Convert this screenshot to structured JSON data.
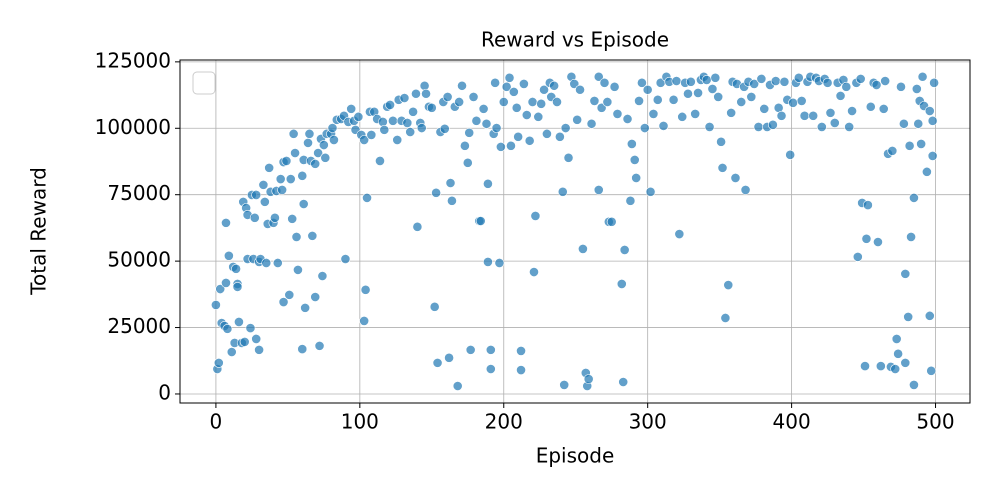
{
  "chart_data": {
    "type": "scatter",
    "title": "Reward vs Episode",
    "x_label": "Episode",
    "y_label": "Total Reward",
    "color": "#1f77b4",
    "grid": true,
    "legend": "upper left",
    "xlim": [
      -24.95,
      523.95
    ],
    "xticks": [
      0,
      100,
      200,
      300,
      400,
      500
    ],
    "ylim": [
      -3400,
      125700
    ],
    "yticks": [
      0,
      25000,
      50000,
      75000,
      100000,
      125000
    ],
    "x": [
      0,
      1,
      2,
      3,
      4,
      6,
      7,
      7,
      8,
      9,
      11,
      12,
      13,
      14,
      15,
      15,
      16,
      18,
      19,
      20,
      21,
      22,
      22,
      24,
      25,
      26,
      27,
      28,
      28,
      30,
      30,
      31,
      33,
      34,
      35,
      36,
      37,
      38,
      40,
      41,
      42,
      43,
      45,
      46,
      47,
      47,
      49,
      51,
      52,
      53,
      54,
      55,
      56,
      57,
      60,
      60,
      61,
      61,
      62,
      64,
      65,
      66,
      67,
      69,
      69,
      71,
      72,
      73,
      74,
      75,
      76,
      77,
      80,
      81,
      82,
      84,
      87,
      89,
      90,
      92,
      94,
      96,
      97,
      99,
      101,
      103,
      103,
      104,
      105,
      107,
      108,
      110,
      112,
      114,
      116,
      117,
      119,
      121,
      123,
      126,
      127,
      129,
      131,
      133,
      135,
      137,
      139,
      140,
      142,
      143,
      145,
      146,
      148,
      150,
      152,
      153,
      154,
      156,
      158,
      159,
      161,
      162,
      163,
      164,
      166,
      168,
      169,
      171,
      173,
      175,
      176,
      177,
      179,
      181,
      183,
      184,
      186,
      188,
      189,
      189,
      191,
      191,
      193,
      194,
      195,
      197,
      198,
      200,
      202,
      204,
      205,
      207,
      209,
      210,
      212,
      212,
      214,
      216,
      218,
      220,
      221,
      222,
      224,
      226,
      228,
      230,
      232,
      233,
      235,
      237,
      239,
      241,
      242,
      243,
      245,
      247,
      249,
      251,
      253,
      255,
      257,
      258,
      259,
      261,
      263,
      266,
      266,
      268,
      270,
      272,
      273,
      275,
      277,
      279,
      282,
      283,
      284,
      286,
      288,
      289,
      291,
      292,
      294,
      296,
      298,
      300,
      302,
      304,
      307,
      309,
      311,
      313,
      315,
      318,
      320,
      322,
      324,
      326,
      328,
      330,
      333,
      335,
      337,
      339,
      341,
      343,
      345,
      347,
      349,
      351,
      352,
      354,
      356,
      358,
      359,
      361,
      362,
      365,
      367,
      368,
      370,
      372,
      374,
      377,
      379,
      381,
      383,
      385,
      387,
      389,
      391,
      393,
      395,
      397,
      399,
      401,
      403,
      405,
      407,
      409,
      411,
      413,
      415,
      417,
      419,
      421,
      423,
      425,
      427,
      430,
      432,
      434,
      436,
      438,
      440,
      442,
      445,
      446,
      448,
      449,
      451,
      452,
      453,
      455,
      457,
      459,
      460,
      462,
      464,
      465,
      467,
      469,
      470,
      472,
      473,
      474,
      476,
      478,
      479,
      479,
      481,
      482,
      483,
      485,
      485,
      487,
      488,
      489,
      490,
      491,
      492,
      494,
      496,
      496,
      497,
      498,
      498,
      499
    ],
    "values": [
      33500,
      9400,
      11700,
      39500,
      26700,
      25600,
      41800,
      64400,
      24500,
      52000,
      15800,
      47800,
      19200,
      47100,
      41400,
      40300,
      27100,
      19200,
      72300,
      19600,
      70000,
      50800,
      67400,
      24800,
      74900,
      50800,
      66300,
      74900,
      20700,
      49700,
      16600,
      50800,
      78700,
      72300,
      49300,
      64000,
      85100,
      76100,
      64400,
      66300,
      76400,
      49300,
      80900,
      76800,
      87300,
      34600,
      87700,
      37300,
      80900,
      65900,
      97900,
      90700,
      59100,
      46700,
      82100,
      16900,
      71500,
      88100,
      32400,
      94500,
      97900,
      87700,
      59500,
      86600,
      36500,
      90700,
      18100,
      96000,
      44400,
      93700,
      88900,
      97900,
      97900,
      100100,
      95600,
      103200,
      103500,
      104700,
      50800,
      102400,
      107300,
      102800,
      99400,
      104300,
      97500,
      95600,
      27500,
      39200,
      73800,
      106200,
      97500,
      106200,
      103500,
      87700,
      102400,
      99400,
      108100,
      108800,
      102800,
      95600,
      110700,
      102800,
      111400,
      102000,
      98600,
      106200,
      113000,
      62900,
      102000,
      100100,
      116000,
      113000,
      108100,
      107700,
      32800,
      75700,
      11700,
      98600,
      109900,
      99800,
      111800,
      13600,
      79400,
      72700,
      108100,
      3000,
      109900,
      116000,
      93400,
      87000,
      98300,
      16600,
      111800,
      102800,
      65100,
      65100,
      107300,
      101700,
      79100,
      49700,
      16600,
      9400,
      97900,
      117100,
      100100,
      49300,
      93000,
      109900,
      115600,
      119000,
      93400,
      113700,
      107700,
      96800,
      9000,
      16200,
      116700,
      105000,
      95300,
      109900,
      45900,
      67000,
      104300,
      109200,
      114500,
      97900,
      117100,
      111800,
      116000,
      109900,
      96800,
      76100,
      3400,
      100100,
      88900,
      119400,
      116700,
      103200,
      114500,
      54600,
      7900,
      3000,
      5600,
      101700,
      110300,
      119400,
      76800,
      107700,
      117100,
      109900,
      64800,
      64800,
      115600,
      105400,
      41400,
      4500,
      54200,
      103500,
      72700,
      94100,
      88100,
      81300,
      110300,
      117100,
      100100,
      114500,
      76100,
      105400,
      110700,
      117100,
      100900,
      119400,
      117500,
      110700,
      117800,
      60200,
      104300,
      117100,
      113000,
      117500,
      105400,
      113300,
      118200,
      119400,
      118200,
      100500,
      114800,
      119000,
      111800,
      94900,
      85100,
      28600,
      41000,
      105800,
      117500,
      81300,
      116700,
      109900,
      115600,
      76800,
      117500,
      111800,
      116700,
      100500,
      118600,
      107300,
      100500,
      116300,
      101300,
      117800,
      107700,
      104700,
      117500,
      110700,
      90000,
      109600,
      117100,
      119000,
      110300,
      104700,
      117500,
      119400,
      104700,
      119000,
      117800,
      100500,
      118600,
      117100,
      105800,
      102000,
      117100,
      112200,
      118200,
      115600,
      100500,
      106500,
      117100,
      51600,
      118600,
      71900,
      10500,
      58400,
      71100,
      108100,
      117100,
      116300,
      57200,
      10500,
      107300,
      117800,
      90400,
      10200,
      91500,
      9400,
      20700,
      15100,
      115600,
      101700,
      45200,
      11700,
      29000,
      93400,
      59100,
      3400,
      73800,
      114800,
      101700,
      110300,
      94100,
      119400,
      108400,
      83600,
      29400,
      106500,
      8700,
      102800,
      89600,
      117100
    ]
  }
}
